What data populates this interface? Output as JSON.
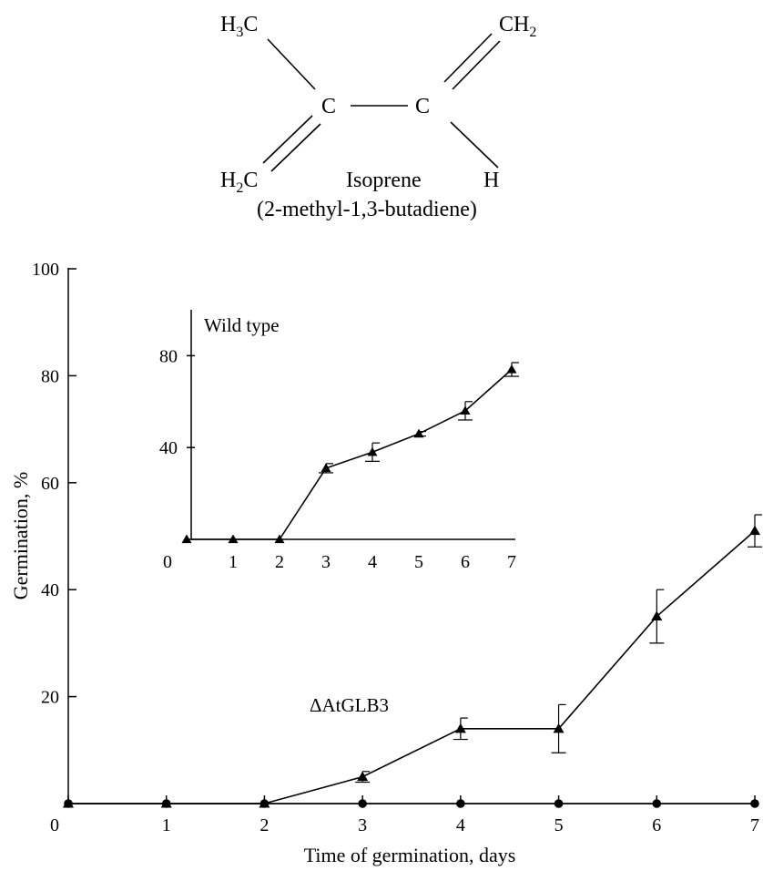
{
  "structure": {
    "atoms": {
      "ch3_top_left": "H3C",
      "ch2_top_right": "CH2",
      "c_left": "C",
      "c_right": "C",
      "h2c_bottom_left": "H2C",
      "h_bottom_right": "H"
    },
    "name": "Isoprene",
    "iupac": "(2-methyl-1,3-butadiene)"
  },
  "chart_data": [
    {
      "type": "line",
      "title": "",
      "xlabel": "Time of germination, days",
      "ylabel": "Germination, %",
      "xlim": [
        0,
        7
      ],
      "ylim": [
        0,
        100
      ],
      "xticks": [
        0,
        1,
        2,
        3,
        4,
        5,
        6,
        7
      ],
      "yticks": [
        20,
        40,
        60,
        80,
        100
      ],
      "grid": false,
      "series": [
        {
          "name": "ΔAtGLB3",
          "marker": "triangle",
          "x": [
            0,
            1,
            2,
            3,
            4,
            5,
            6,
            7
          ],
          "y": [
            0,
            0,
            0,
            5,
            14,
            14,
            35,
            51
          ],
          "error": [
            0,
            0,
            0,
            1,
            2,
            4.5,
            5,
            3
          ]
        },
        {
          "marker": "circle",
          "x": [
            0,
            1,
            2,
            3,
            4,
            5,
            6,
            7
          ],
          "y": [
            0,
            0,
            0,
            0,
            0,
            0,
            0,
            0
          ]
        }
      ]
    },
    {
      "type": "line",
      "title": "Wild type",
      "xlabel": "",
      "ylabel": "",
      "xlim": [
        0,
        7
      ],
      "ylim": [
        0,
        100
      ],
      "xtick_labels": [
        0,
        1,
        2,
        3,
        4,
        5,
        6,
        7
      ],
      "yticks": [
        40,
        80
      ],
      "grid": false,
      "series": [
        {
          "marker": "triangle",
          "x": [
            0,
            1,
            2,
            3,
            4,
            5,
            6,
            7
          ],
          "y": [
            0,
            0,
            0,
            31,
            38,
            46,
            56,
            74
          ],
          "error": [
            0,
            0,
            0,
            2,
            4,
            1,
            4,
            3
          ]
        }
      ]
    }
  ]
}
